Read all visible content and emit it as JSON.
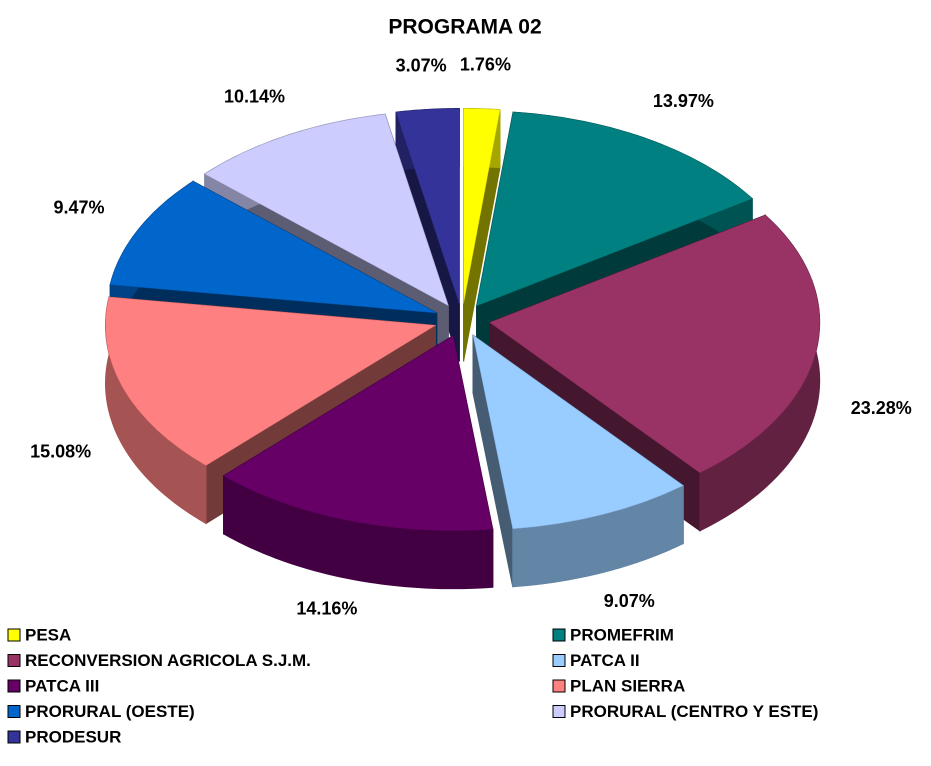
{
  "chart_data": {
    "type": "pie3d",
    "title": "PROGRAMA 02",
    "categories": [
      "PESA",
      "PROMEFRIM",
      "RECONVERSION AGRICOLA S.J.M.",
      "PATCA II",
      "PATCA III",
      "PLAN SIERRA",
      "PRORURAL (OESTE)",
      "PRORURAL (CENTRO Y ESTE)",
      "PRODESUR"
    ],
    "values": [
      1.76,
      13.97,
      23.28,
      9.07,
      14.16,
      15.08,
      9.47,
      10.14,
      3.07
    ],
    "value_labels": [
      "1.76%",
      "13.97%",
      "23.28%",
      "9.07%",
      "14.16%",
      "15.08%",
      "9.47%",
      "10.14%",
      "3.07%"
    ],
    "colors": [
      "#ffff00",
      "#008080",
      "#993366",
      "#99ccff",
      "#660066",
      "#ff8080",
      "#0066cc",
      "#ccccff",
      "#333399"
    ],
    "legend": "bottom"
  }
}
